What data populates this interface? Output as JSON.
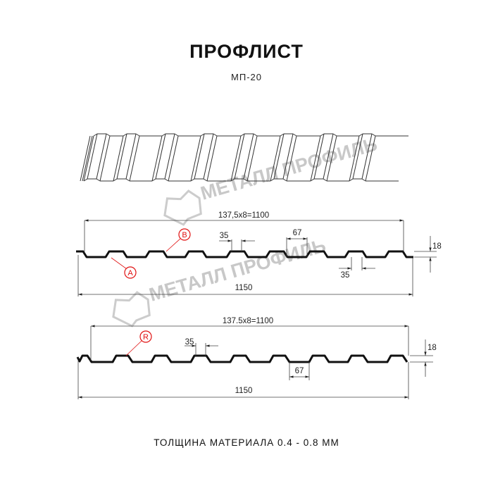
{
  "header": {
    "title": "ПРОФЛИСТ",
    "subtitle": "МП-20"
  },
  "watermark": {
    "text": "МЕТАЛЛ ПРОФИЛЬ",
    "color": "#c8c8c8"
  },
  "profile_a": {
    "pitch_label": "137,5x8=1100",
    "width_label": "1150",
    "crest_label": "35",
    "trough_label": "35",
    "gap_label": "67",
    "height_label": "18",
    "markers": [
      "A",
      "B"
    ]
  },
  "profile_b": {
    "pitch_label": "137.5x8=1100",
    "width_label": "1150",
    "crest_label": "35",
    "gap_label": "67",
    "height_label": "18",
    "markers": [
      "R"
    ]
  },
  "footer": {
    "thickness": "ТОЛЩИНА МАТЕРИАЛА 0.4 - 0.8 ММ"
  },
  "colors": {
    "marker": "#e01010",
    "line": "#111111"
  }
}
